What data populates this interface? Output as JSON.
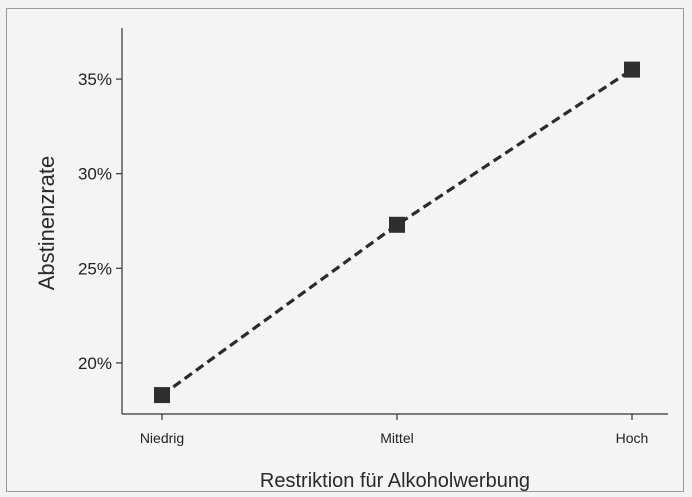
{
  "chart_data": {
    "type": "line",
    "categories": [
      "Niedrig",
      "Mittel",
      "Hoch"
    ],
    "series": [
      {
        "values": [
          18.3,
          27.3,
          35.5
        ]
      }
    ],
    "xlabel": "Restriktion für Alkoholwerbung",
    "ylabel": "Abstinenzrate",
    "ylim": [
      17.3,
      37.7
    ],
    "yticks": [
      20,
      25,
      30,
      35
    ],
    "ytick_labels": [
      "20%",
      "25%",
      "30%",
      "35%"
    ],
    "grid": false,
    "line_style": "dashed",
    "marker": "square",
    "colors": {
      "line": "#2b2b2b",
      "marker": "#2e2e2e",
      "axis": "#333333"
    }
  }
}
